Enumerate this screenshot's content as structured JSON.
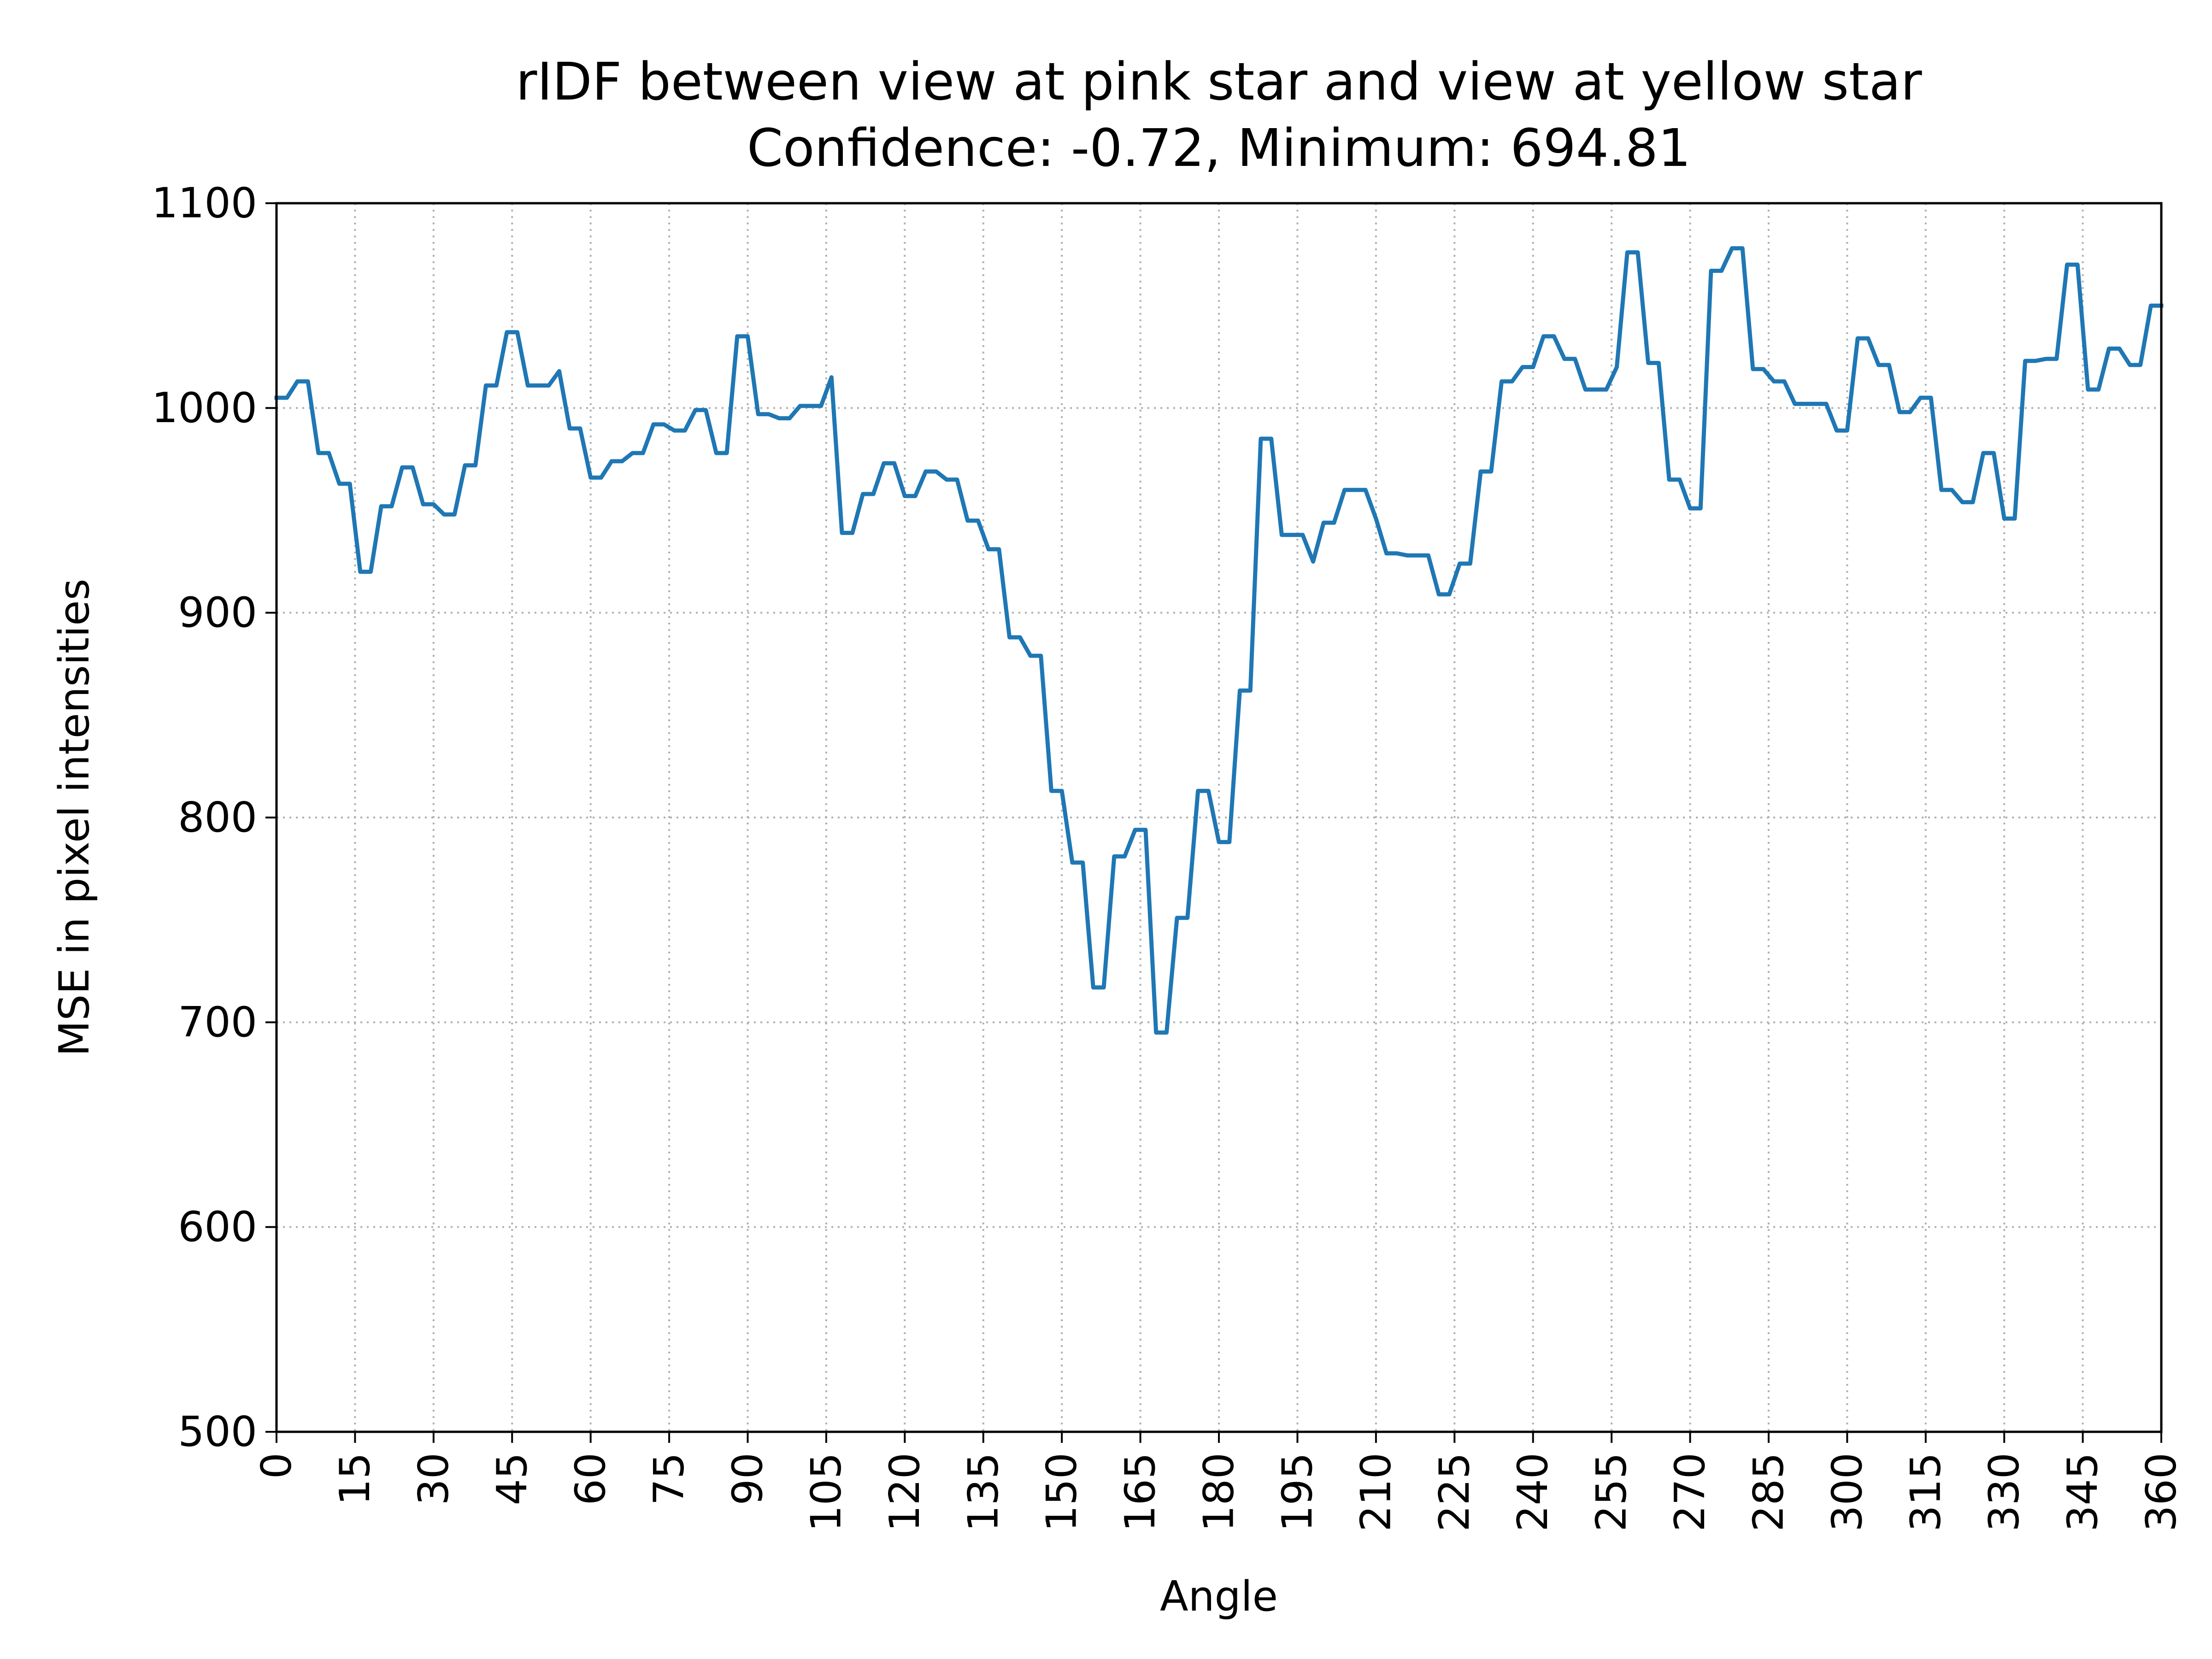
{
  "chart_data": {
    "type": "line",
    "title": "rIDF between view at pink star and view at yellow star",
    "subtitle": "Confidence: -0.72, Minimum: 694.81",
    "xlabel": "Angle",
    "ylabel": "MSE in pixel intensities",
    "xlim": [
      0,
      360
    ],
    "ylim": [
      500,
      1100
    ],
    "xticks": [
      "0",
      "15",
      "30",
      "45",
      "60",
      "75",
      "90",
      "105",
      "120",
      "135",
      "150",
      "165",
      "180",
      "195",
      "210",
      "225",
      "240",
      "255",
      "270",
      "285",
      "300",
      "315",
      "330",
      "345",
      "360"
    ],
    "yticks": [
      "500",
      "600",
      "700",
      "800",
      "900",
      "1000",
      "1100"
    ],
    "grid": true,
    "grid_style": "dotted",
    "legend": "none",
    "series_color": "#1f77b4",
    "series": [
      {
        "x": [
          0,
          2,
          4,
          6,
          8,
          10,
          12,
          14,
          16,
          18,
          20,
          22,
          24,
          26,
          28,
          30,
          32,
          34,
          36,
          38,
          40,
          42,
          44,
          46,
          48,
          50,
          52,
          54,
          56,
          58,
          60,
          62,
          64,
          66,
          68,
          70,
          72,
          74,
          76,
          78,
          80,
          82,
          84,
          86,
          88,
          90,
          92,
          94,
          96,
          98,
          100,
          102,
          104,
          106,
          108,
          110,
          112,
          114,
          116,
          118,
          120,
          122,
          124,
          126,
          128,
          130,
          132,
          134,
          136,
          138,
          140,
          142,
          144,
          146,
          148,
          150,
          152,
          154,
          156,
          158,
          160,
          162,
          164,
          166,
          168,
          170,
          172,
          174,
          176,
          178,
          180,
          182,
          184,
          186,
          188,
          190,
          192,
          194,
          196,
          198,
          200,
          202,
          204,
          206,
          208,
          210,
          212,
          214,
          216,
          218,
          220,
          222,
          224,
          226,
          228,
          230,
          232,
          234,
          236,
          238,
          240,
          242,
          244,
          246,
          248,
          250,
          252,
          254,
          256,
          258,
          260,
          262,
          264,
          266,
          268,
          270,
          272,
          274,
          276,
          278,
          280,
          282,
          284,
          286,
          288,
          290,
          292,
          294,
          296,
          298,
          300,
          302,
          304,
          306,
          308,
          310,
          312,
          314,
          316,
          318,
          320,
          322,
          324,
          326,
          328,
          330,
          332,
          334,
          336,
          338,
          340,
          342,
          344,
          346,
          348,
          350,
          352,
          354,
          356,
          358,
          360
        ],
        "values": [
          1005,
          1005,
          1013,
          1013,
          978,
          978,
          963,
          963,
          920,
          920,
          952,
          952,
          971,
          971,
          953,
          953,
          948,
          948,
          972,
          972,
          1011,
          1011,
          1037,
          1037,
          1011,
          1011,
          1011,
          1018,
          990,
          990,
          966,
          966,
          974,
          974,
          978,
          978,
          992,
          992,
          989,
          989,
          999,
          999,
          978,
          978,
          1035,
          1035,
          997,
          997,
          995,
          995,
          1001,
          1001,
          1001,
          1015,
          939,
          939,
          958,
          958,
          973,
          973,
          957,
          957,
          969,
          969,
          965,
          965,
          945,
          945,
          931,
          931,
          888,
          888,
          879,
          879,
          813,
          813,
          778,
          778,
          717,
          717,
          781,
          781,
          794,
          794,
          695,
          695,
          751,
          751,
          813,
          813,
          788,
          788,
          862,
          862,
          985,
          985,
          938,
          938,
          938,
          925,
          944,
          944,
          960,
          960,
          960,
          946,
          929,
          929,
          928,
          928,
          928,
          909,
          909,
          924,
          924,
          969,
          969,
          1013,
          1013,
          1020,
          1020,
          1035,
          1035,
          1024,
          1024,
          1009,
          1009,
          1009,
          1020,
          1076,
          1076,
          1022,
          1022,
          965,
          965,
          951,
          951,
          1067,
          1067,
          1078,
          1078,
          1019,
          1019,
          1013,
          1013,
          1002,
          1002,
          1002,
          1002,
          989,
          989,
          1034,
          1034,
          1021,
          1021,
          998,
          998,
          1005,
          1005,
          960,
          960,
          954,
          954,
          978,
          978,
          946,
          946,
          1023,
          1023,
          1024,
          1024,
          1070,
          1070,
          1009,
          1009,
          1029,
          1029,
          1021,
          1021,
          1050,
          1050
        ]
      }
    ]
  }
}
